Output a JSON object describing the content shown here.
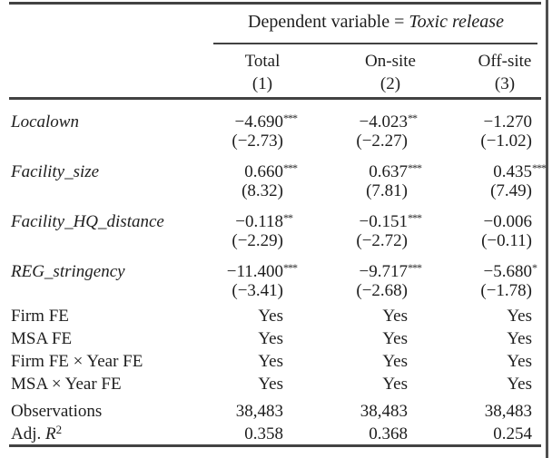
{
  "colors": {
    "text": "#1e1e1e",
    "rule": "#424242",
    "background": "#ffffff"
  },
  "header": {
    "spanner_prefix": "Dependent variable = ",
    "spanner_dep_var": "Toxic release",
    "columns": [
      {
        "label": "Total",
        "num": "(1)"
      },
      {
        "label": "On-site",
        "num": "(2)"
      },
      {
        "label": "Off-site",
        "num": "(3)"
      }
    ]
  },
  "coefficients": [
    {
      "label": "Localown",
      "cells": [
        {
          "est": "−4.690",
          "stars": "***",
          "t": "(−2.73)"
        },
        {
          "est": "−4.023",
          "stars": "**",
          "t": "(−2.27)"
        },
        {
          "est": "−1.270",
          "stars": "",
          "t": "(−1.02)"
        }
      ]
    },
    {
      "label": "Facility_size",
      "cells": [
        {
          "est": "0.660",
          "stars": "***",
          "t": "(8.32)"
        },
        {
          "est": "0.637",
          "stars": "***",
          "t": "(7.81)"
        },
        {
          "est": "0.435",
          "stars": "***",
          "t": "(7.49)"
        }
      ]
    },
    {
      "label": "Facility_HQ_distance",
      "cells": [
        {
          "est": "−0.118",
          "stars": "**",
          "t": "(−2.29)"
        },
        {
          "est": "−0.151",
          "stars": "***",
          "t": "(−2.72)"
        },
        {
          "est": "−0.006",
          "stars": "",
          "t": "(−0.11)"
        }
      ]
    },
    {
      "label": "REG_stringency",
      "cells": [
        {
          "est": "−11.400",
          "stars": "***",
          "t": "(−3.41)"
        },
        {
          "est": "−9.717",
          "stars": "***",
          "t": "(−2.68)"
        },
        {
          "est": "−5.680",
          "stars": "*",
          "t": "(−1.78)"
        }
      ]
    }
  ],
  "fixed_effects": [
    {
      "label": "Firm FE",
      "values": [
        "Yes",
        "Yes",
        "Yes"
      ]
    },
    {
      "label": "MSA FE",
      "values": [
        "Yes",
        "Yes",
        "Yes"
      ]
    },
    {
      "label": "Firm FE × Year FE",
      "values": [
        "Yes",
        "Yes",
        "Yes"
      ]
    },
    {
      "label": "MSA × Year FE",
      "values": [
        "Yes",
        "Yes",
        "Yes"
      ]
    }
  ],
  "statistics": [
    {
      "label": "Observations",
      "values": [
        "38,483",
        "38,483",
        "38,483"
      ]
    },
    {
      "label_prefix": "Adj. ",
      "label_var": "R",
      "label_sup": "2",
      "values": [
        "0.358",
        "0.368",
        "0.254"
      ]
    }
  ]
}
